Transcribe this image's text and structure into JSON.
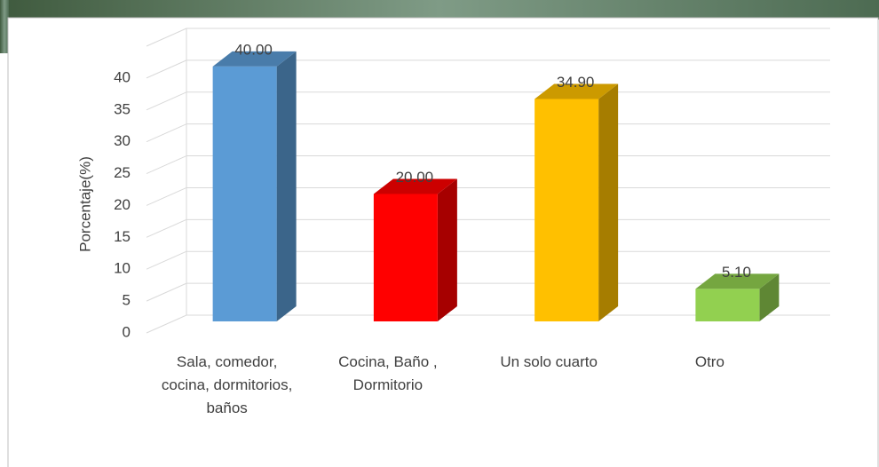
{
  "chart_data": {
    "type": "bar3d",
    "y_label": "Porcentaje(%)",
    "categories": [
      "Sala, comedor, cocina, dormitorios, baños",
      "Cocina, Baño , Dormitorio",
      "Un solo cuarto",
      "Otro"
    ],
    "values": [
      40,
      20,
      34.9,
      5.1
    ],
    "value_labels": [
      "40.00",
      "20.00",
      "34.90",
      "5.10"
    ],
    "colors": [
      "#5b9bd5",
      "#ff0000",
      "#ffc000",
      "#92d050"
    ],
    "ylim": [
      0,
      45
    ],
    "yticks": [
      0,
      5,
      10,
      15,
      20,
      25,
      30,
      35,
      40
    ],
    "grid": true
  }
}
